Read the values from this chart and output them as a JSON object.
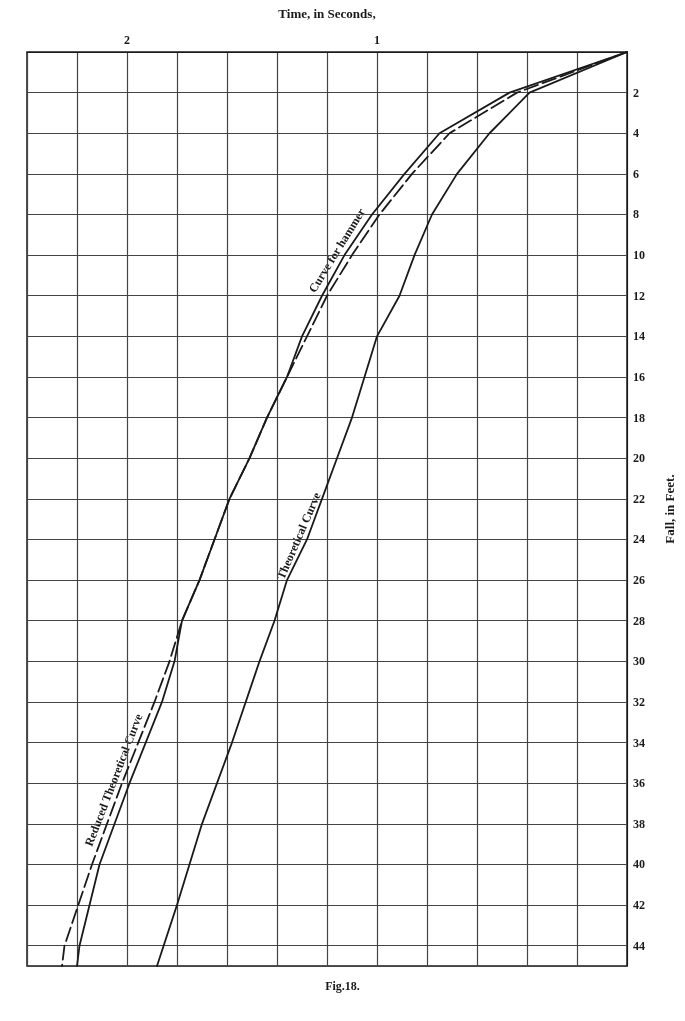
{
  "chart_data": {
    "type": "line",
    "xlabel": "Time, in Seconds,",
    "ylabel": "Fall, in Feet.",
    "xlim": [
      2.4,
      0
    ],
    "ylim": [
      45,
      0
    ],
    "xticks": [
      {
        "value": 2.2,
        "label": null
      },
      {
        "value": 2,
        "label": "2"
      },
      {
        "value": 1.8,
        "label": null
      },
      {
        "value": 1.6,
        "label": null
      },
      {
        "value": 1.4,
        "label": null
      },
      {
        "value": 1.2,
        "label": null
      },
      {
        "value": 1,
        "label": "1"
      },
      {
        "value": 0.8,
        "label": null
      },
      {
        "value": 0.6,
        "label": null
      },
      {
        "value": 0.4,
        "label": null
      },
      {
        "value": 0.2,
        "label": null
      }
    ],
    "yticks": [
      2,
      4,
      6,
      8,
      10,
      12,
      14,
      16,
      18,
      20,
      22,
      24,
      26,
      28,
      30,
      32,
      34,
      36,
      38,
      40,
      42,
      44
    ],
    "grid": true,
    "marker": "none",
    "series": [
      {
        "name": "Curve for hammer",
        "color": "#1a1a1a",
        "line_style": "solid",
        "x": [
          0,
          0.47,
          0.75,
          0.89,
          1.02,
          1.13,
          1.22,
          1.3,
          1.36,
          1.44,
          1.51,
          1.59,
          1.65,
          1.71,
          1.78,
          1.81,
          1.86,
          1.99,
          2.11,
          2.19,
          2.2
        ],
        "values": [
          0,
          2,
          4,
          6,
          8,
          10,
          12,
          14,
          16,
          18,
          20,
          22,
          24,
          26,
          28,
          30,
          32,
          36,
          40,
          44,
          45
        ]
      },
      {
        "name": "Reduced Theoretical Curve",
        "color": "#1a1a1a",
        "line_style": "dashed",
        "x": [
          0,
          0.44,
          0.71,
          0.86,
          0.99,
          1.1,
          1.2,
          1.28,
          1.36,
          1.44,
          1.51,
          1.59,
          1.65,
          1.71,
          1.78,
          1.83,
          1.89,
          2.02,
          2.14,
          2.25,
          2.26
        ],
        "values": [
          0,
          2,
          4,
          6,
          8,
          10,
          12,
          14,
          16,
          18,
          20,
          22,
          24,
          26,
          28,
          30,
          32,
          36,
          40,
          44,
          45
        ]
      },
      {
        "name": "Theoretical Curve",
        "color": "#1a1a1a",
        "line_style": "solid",
        "x": [
          0,
          0.39,
          0.55,
          0.68,
          0.78,
          0.85,
          0.91,
          1.0,
          1.05,
          1.1,
          1.16,
          1.22,
          1.28,
          1.36,
          1.41,
          1.47,
          1.58,
          1.7,
          1.8,
          1.88
        ],
        "values": [
          0,
          2,
          4,
          6,
          8,
          10,
          12,
          14,
          16,
          18,
          20,
          22,
          24,
          26,
          28,
          30,
          34,
          38,
          42,
          45
        ]
      }
    ],
    "annotations": [
      "Fig.18."
    ]
  }
}
